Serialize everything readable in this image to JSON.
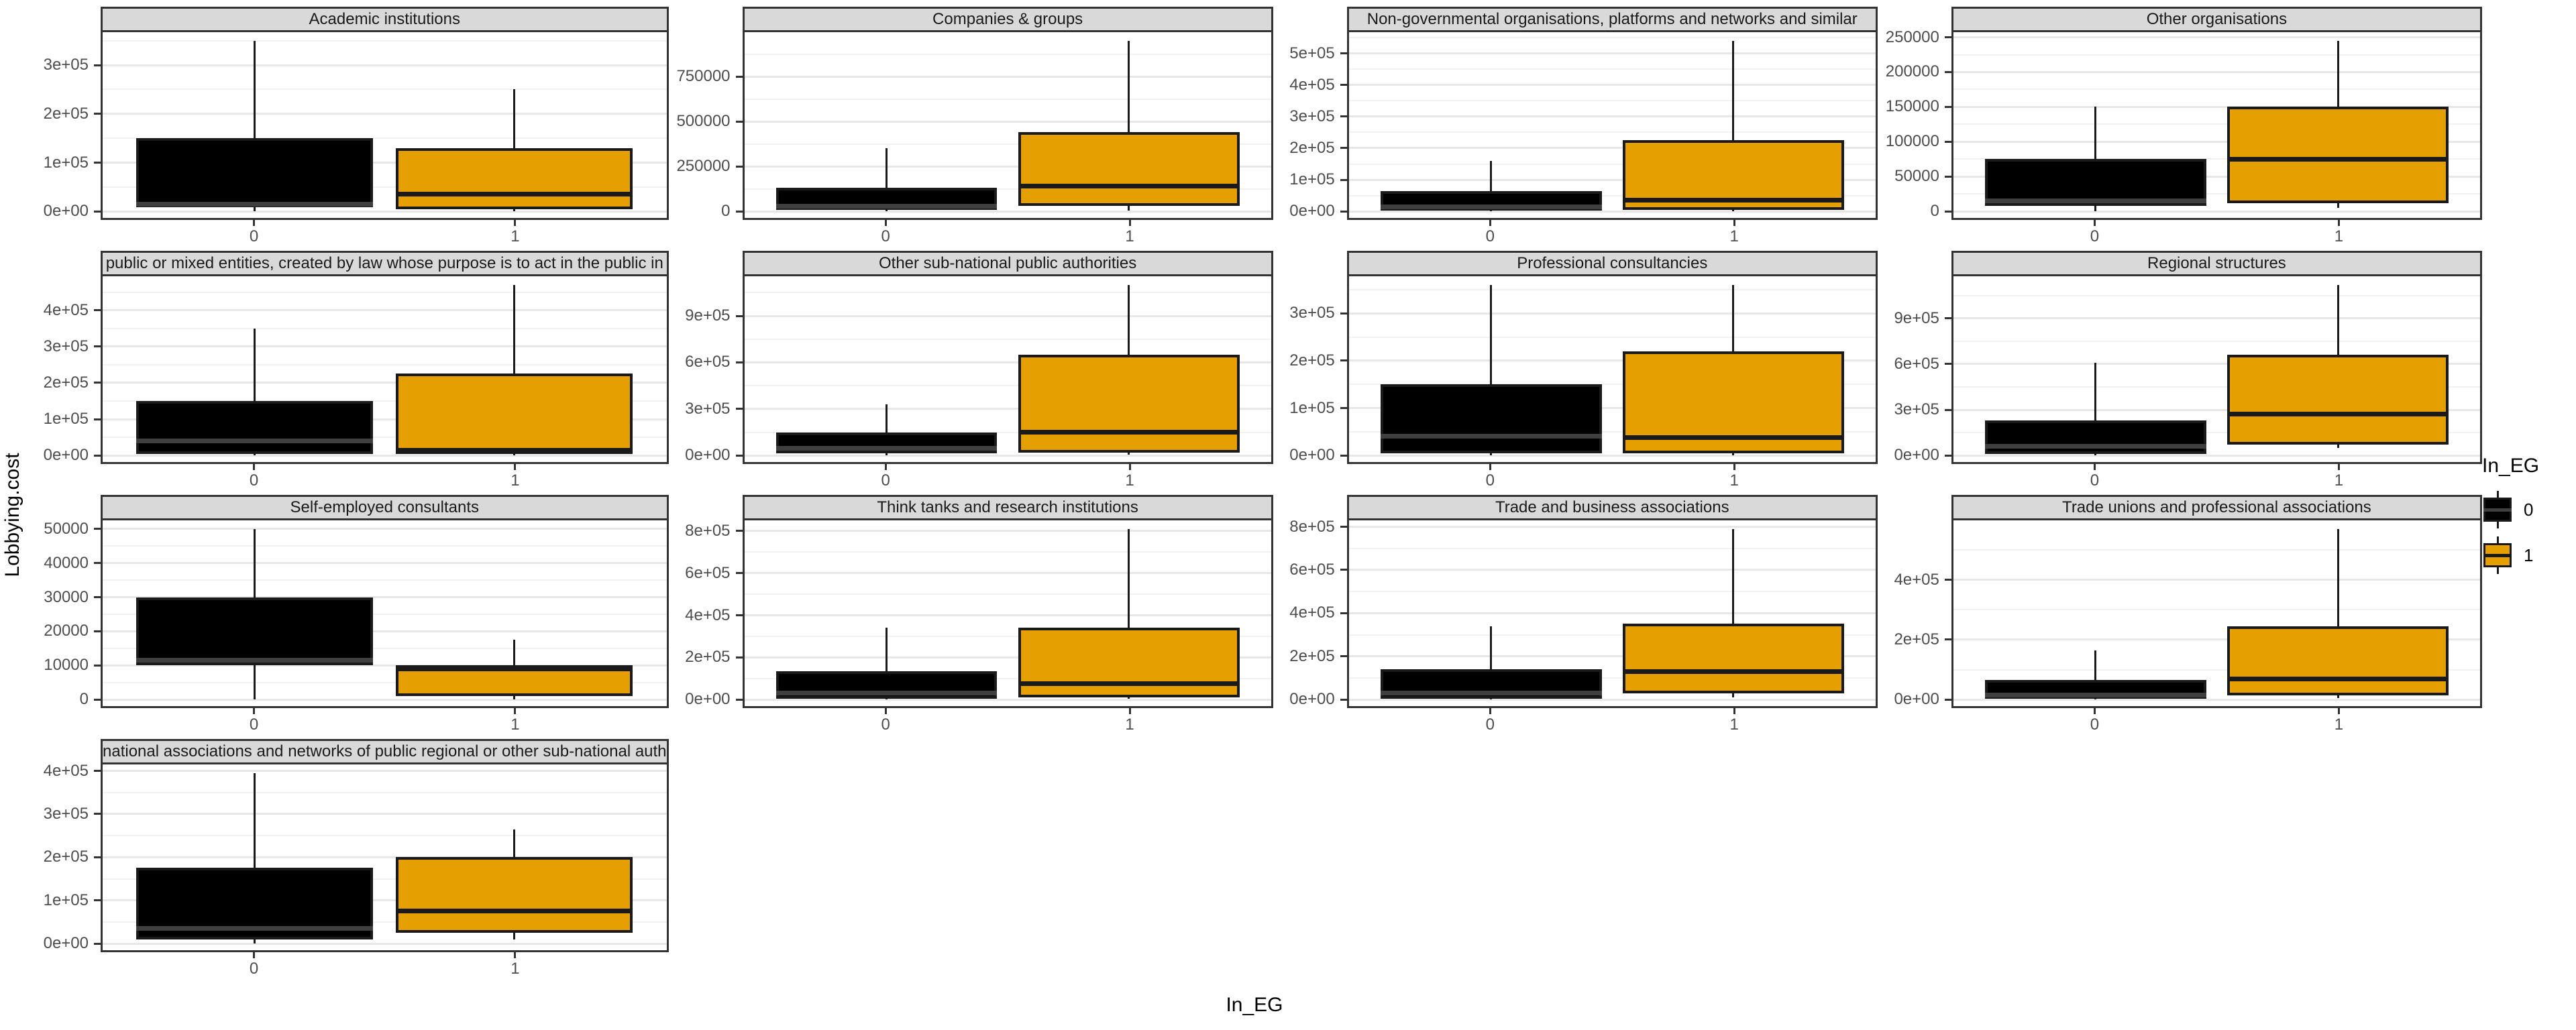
{
  "figure": {
    "y_axis_title": "Lobbying.cost",
    "x_axis_title": "In_EG",
    "colors": {
      "group0": "#000000",
      "group1": "#E69F00",
      "strip_background": "#D9D9D9",
      "panel_border": "#333333",
      "grid_major": "#E7E7E7",
      "grid_minor": "#F2F2F2"
    },
    "legend": {
      "title": "In_EG",
      "items": [
        {
          "label": "0",
          "color": "#000000"
        },
        {
          "label": "1",
          "color": "#E69F00"
        }
      ]
    }
  },
  "chart_data": [
    {
      "type": "boxplot",
      "title": "Academic institutions",
      "ylim": [
        -17500,
        367500
      ],
      "yticks": [
        {
          "v": 0,
          "label": "0e+00"
        },
        {
          "v": 100000,
          "label": "1e+05"
        },
        {
          "v": 200000,
          "label": "2e+05"
        },
        {
          "v": 300000,
          "label": "3e+05"
        }
      ],
      "series": [
        {
          "name": "0",
          "color": "#000000",
          "min": 0,
          "q1": 8000,
          "median": 15000,
          "q3": 150000,
          "max": 350000
        },
        {
          "name": "1",
          "color": "#E69F00",
          "min": 0,
          "q1": 5000,
          "median": 35000,
          "q3": 130000,
          "max": 250000
        }
      ]
    },
    {
      "type": "boxplot",
      "title": "Companies & groups",
      "ylim": [
        -47500,
        997500
      ],
      "yticks": [
        {
          "v": 0,
          "label": "0"
        },
        {
          "v": 250000,
          "label": "250000"
        },
        {
          "v": 500000,
          "label": "500000"
        },
        {
          "v": 750000,
          "label": "750000"
        }
      ],
      "series": [
        {
          "name": "0",
          "color": "#000000",
          "min": 0,
          "q1": 10000,
          "median": 30000,
          "q3": 130000,
          "max": 350000
        },
        {
          "name": "1",
          "color": "#E69F00",
          "min": 5000,
          "q1": 30000,
          "median": 140000,
          "q3": 440000,
          "max": 950000
        }
      ]
    },
    {
      "type": "boxplot",
      "title": "Non-governmental organisations, platforms and networks and similar",
      "ylim": [
        -27000,
        567000
      ],
      "yticks": [
        {
          "v": 0,
          "label": "0e+00"
        },
        {
          "v": 100000,
          "label": "1e+05"
        },
        {
          "v": 200000,
          "label": "2e+05"
        },
        {
          "v": 300000,
          "label": "3e+05"
        },
        {
          "v": 400000,
          "label": "4e+05"
        },
        {
          "v": 500000,
          "label": "5e+05"
        }
      ],
      "series": [
        {
          "name": "0",
          "color": "#000000",
          "min": 0,
          "q1": 3000,
          "median": 15000,
          "q3": 65000,
          "max": 160000
        },
        {
          "name": "1",
          "color": "#E69F00",
          "min": 0,
          "q1": 5000,
          "median": 35000,
          "q3": 225000,
          "max": 540000
        }
      ]
    },
    {
      "type": "boxplot",
      "title": "Other organisations",
      "ylim": [
        -12250,
        257250
      ],
      "yticks": [
        {
          "v": 0,
          "label": "0"
        },
        {
          "v": 50000,
          "label": "50000"
        },
        {
          "v": 100000,
          "label": "100000"
        },
        {
          "v": 150000,
          "label": "150000"
        },
        {
          "v": 200000,
          "label": "200000"
        },
        {
          "v": 250000,
          "label": "250000"
        }
      ],
      "series": [
        {
          "name": "0",
          "color": "#000000",
          "min": 0,
          "q1": 8000,
          "median": 15000,
          "q3": 75000,
          "max": 150000
        },
        {
          "name": "1",
          "color": "#E69F00",
          "min": 5000,
          "q1": 12000,
          "median": 75000,
          "q3": 150000,
          "max": 245000
        }
      ]
    },
    {
      "type": "boxplot",
      "title": "public or mixed entities, created by law whose purpose is to act in the public in",
      "ylim": [
        -23500,
        493500
      ],
      "yticks": [
        {
          "v": 0,
          "label": "0e+00"
        },
        {
          "v": 100000,
          "label": "1e+05"
        },
        {
          "v": 200000,
          "label": "2e+05"
        },
        {
          "v": 300000,
          "label": "3e+05"
        },
        {
          "v": 400000,
          "label": "4e+05"
        }
      ],
      "series": [
        {
          "name": "0",
          "color": "#000000",
          "min": 0,
          "q1": 5000,
          "median": 40000,
          "q3": 150000,
          "max": 350000
        },
        {
          "name": "1",
          "color": "#E69F00",
          "min": 0,
          "q1": 5000,
          "median": 15000,
          "q3": 225000,
          "max": 470000
        }
      ]
    },
    {
      "type": "boxplot",
      "title": "Other sub-national public authorities",
      "ylim": [
        -55000,
        1155000
      ],
      "yticks": [
        {
          "v": 0,
          "label": "0e+00"
        },
        {
          "v": 300000,
          "label": "3e+05"
        },
        {
          "v": 600000,
          "label": "6e+05"
        },
        {
          "v": 900000,
          "label": "9e+05"
        }
      ],
      "series": [
        {
          "name": "0",
          "color": "#000000",
          "min": 0,
          "q1": 15000,
          "median": 45000,
          "q3": 150000,
          "max": 330000
        },
        {
          "name": "1",
          "color": "#E69F00",
          "min": 5000,
          "q1": 20000,
          "median": 150000,
          "q3": 650000,
          "max": 1100000
        }
      ]
    },
    {
      "type": "boxplot",
      "title": "Professional consultancies",
      "ylim": [
        -18000,
        378000
      ],
      "yticks": [
        {
          "v": 0,
          "label": "0e+00"
        },
        {
          "v": 100000,
          "label": "1e+05"
        },
        {
          "v": 200000,
          "label": "2e+05"
        },
        {
          "v": 300000,
          "label": "3e+05"
        }
      ],
      "series": [
        {
          "name": "0",
          "color": "#000000",
          "min": 0,
          "q1": 5000,
          "median": 40000,
          "q3": 150000,
          "max": 360000
        },
        {
          "name": "1",
          "color": "#E69F00",
          "min": 0,
          "q1": 5000,
          "median": 38000,
          "q3": 220000,
          "max": 360000
        }
      ]
    },
    {
      "type": "boxplot",
      "title": "Regional structures",
      "ylim": [
        -56000,
        1176000
      ],
      "yticks": [
        {
          "v": 0,
          "label": "0e+00"
        },
        {
          "v": 300000,
          "label": "3e+05"
        },
        {
          "v": 600000,
          "label": "6e+05"
        },
        {
          "v": 900000,
          "label": "9e+05"
        }
      ],
      "series": [
        {
          "name": "0",
          "color": "#000000",
          "min": 0,
          "q1": 10000,
          "median": 60000,
          "q3": 230000,
          "max": 610000
        },
        {
          "name": "1",
          "color": "#E69F00",
          "min": 50000,
          "q1": 70000,
          "median": 270000,
          "q3": 660000,
          "max": 1120000
        }
      ]
    },
    {
      "type": "boxplot",
      "title": "Self-employed consultants",
      "ylim": [
        -2500,
        52500
      ],
      "yticks": [
        {
          "v": 0,
          "label": "0"
        },
        {
          "v": 10000,
          "label": "10000"
        },
        {
          "v": 20000,
          "label": "20000"
        },
        {
          "v": 30000,
          "label": "30000"
        },
        {
          "v": 40000,
          "label": "40000"
        },
        {
          "v": 50000,
          "label": "50000"
        }
      ],
      "series": [
        {
          "name": "0",
          "color": "#000000",
          "min": 0,
          "q1": 10000,
          "median": 11500,
          "q3": 30000,
          "max": 50000
        },
        {
          "name": "1",
          "color": "#E69F00",
          "min": 0,
          "q1": 1000,
          "median": 9000,
          "q3": 10000,
          "max": 17500
        }
      ]
    },
    {
      "type": "boxplot",
      "title": "Think tanks and research institutions",
      "ylim": [
        -40500,
        850500
      ],
      "yticks": [
        {
          "v": 0,
          "label": "0e+00"
        },
        {
          "v": 200000,
          "label": "2e+05"
        },
        {
          "v": 400000,
          "label": "4e+05"
        },
        {
          "v": 600000,
          "label": "6e+05"
        },
        {
          "v": 800000,
          "label": "8e+05"
        }
      ],
      "series": [
        {
          "name": "0",
          "color": "#000000",
          "min": 0,
          "q1": 5000,
          "median": 30000,
          "q3": 135000,
          "max": 340000
        },
        {
          "name": "1",
          "color": "#E69F00",
          "min": 5000,
          "q1": 10000,
          "median": 75000,
          "q3": 340000,
          "max": 810000
        }
      ]
    },
    {
      "type": "boxplot",
      "title": "Trade and business associations",
      "ylim": [
        -39500,
        829500
      ],
      "yticks": [
        {
          "v": 0,
          "label": "0e+00"
        },
        {
          "v": 200000,
          "label": "2e+05"
        },
        {
          "v": 400000,
          "label": "4e+05"
        },
        {
          "v": 600000,
          "label": "6e+05"
        },
        {
          "v": 800000,
          "label": "8e+05"
        }
      ],
      "series": [
        {
          "name": "0",
          "color": "#000000",
          "min": 0,
          "q1": 5000,
          "median": 30000,
          "q3": 140000,
          "max": 340000
        },
        {
          "name": "1",
          "color": "#E69F00",
          "min": 10000,
          "q1": 30000,
          "median": 130000,
          "q3": 350000,
          "max": 790000
        }
      ]
    },
    {
      "type": "boxplot",
      "title": "Trade unions and professional associations",
      "ylim": [
        -28500,
        598500
      ],
      "yticks": [
        {
          "v": 0,
          "label": "0e+00"
        },
        {
          "v": 200000,
          "label": "2e+05"
        },
        {
          "v": 400000,
          "label": "4e+05"
        }
      ],
      "series": [
        {
          "name": "0",
          "color": "#000000",
          "min": 0,
          "q1": 2000,
          "median": 15000,
          "q3": 65000,
          "max": 165000
        },
        {
          "name": "1",
          "color": "#E69F00",
          "min": 5000,
          "q1": 15000,
          "median": 70000,
          "q3": 245000,
          "max": 570000
        }
      ]
    },
    {
      "type": "boxplot",
      "title": "national associations and networks of public regional or other sub-national auth",
      "ylim": [
        -19750,
        414750
      ],
      "yticks": [
        {
          "v": 0,
          "label": "0e+00"
        },
        {
          "v": 100000,
          "label": "1e+05"
        },
        {
          "v": 200000,
          "label": "2e+05"
        },
        {
          "v": 300000,
          "label": "3e+05"
        },
        {
          "v": 400000,
          "label": "4e+05"
        }
      ],
      "series": [
        {
          "name": "0",
          "color": "#000000",
          "min": 0,
          "q1": 10000,
          "median": 35000,
          "q3": 175000,
          "max": 395000
        },
        {
          "name": "1",
          "color": "#E69F00",
          "min": 10000,
          "q1": 25000,
          "median": 75000,
          "q3": 200000,
          "max": 265000
        }
      ]
    }
  ]
}
